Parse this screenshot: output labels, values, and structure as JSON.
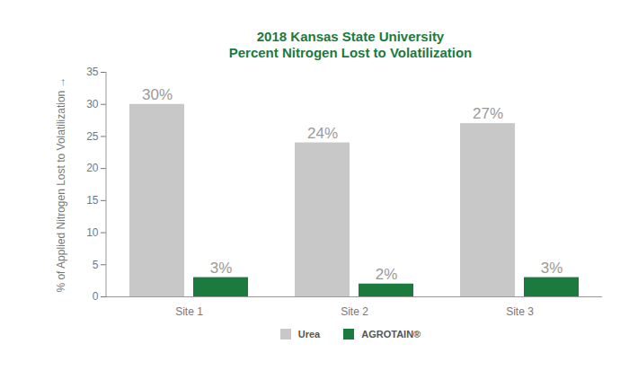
{
  "chart_data": {
    "type": "bar",
    "title": "2018 Kansas State University",
    "subtitle": "Percent Nitrogen Lost to Volatilization",
    "y_label": "% of Applied Nitrogen Lost to Volatilization",
    "categories": [
      "Site 1",
      "Site 2",
      "Site 3"
    ],
    "series": [
      {
        "name": "Urea",
        "color": "#c8c8c8",
        "values": [
          30,
          24,
          27
        ],
        "value_labels": [
          "30%",
          "24%",
          "27%"
        ]
      },
      {
        "name": "AGROTAIN®",
        "color": "#1b7a3e",
        "values": [
          3,
          2,
          3
        ],
        "value_labels": [
          "3%",
          "2%",
          "3%"
        ]
      }
    ],
    "ylim": [
      0,
      35
    ],
    "yticks": [
      0,
      5,
      10,
      15,
      20,
      25,
      30,
      35
    ],
    "grid": false,
    "data_labels": true,
    "legend": "bottom"
  }
}
